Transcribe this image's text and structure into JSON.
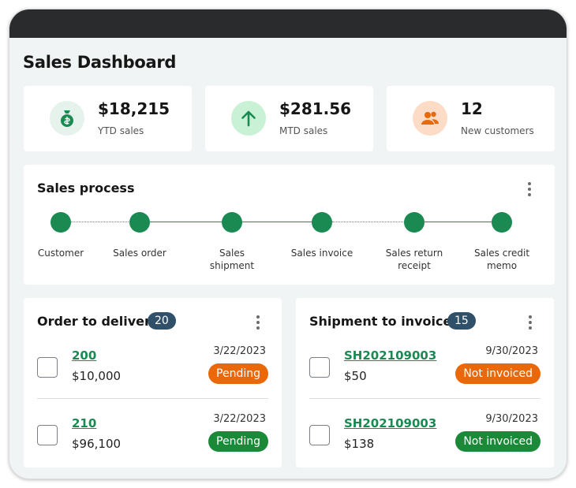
{
  "page_title": "Sales Dashboard",
  "colors": {
    "accent_green": "#1a8a52",
    "accent_orange": "#e8680a",
    "badge_navy": "#2f5068"
  },
  "kpis": [
    {
      "value": "$18,215",
      "label": "YTD sales",
      "icon": "money-bag-icon"
    },
    {
      "value": "$281.56",
      "label": "MTD sales",
      "icon": "arrow-up-icon"
    },
    {
      "value": "12",
      "label": "New customers",
      "icon": "users-icon"
    }
  ],
  "sales_process": {
    "title": "Sales process",
    "steps": [
      {
        "label": "Customer"
      },
      {
        "label": "Sales order"
      },
      {
        "label": "Sales shipment"
      },
      {
        "label": "Sales invoice"
      },
      {
        "label": "Sales return receipt"
      },
      {
        "label": "Sales credit memo"
      }
    ]
  },
  "order_to_deliver": {
    "title": "Order to deliver",
    "count": "20",
    "rows": [
      {
        "id": "200",
        "amount": "$10,000",
        "date": "3/22/2023",
        "status": "Pending",
        "status_color": "#e8680a"
      },
      {
        "id": "210",
        "amount": "$96,100",
        "date": "3/22/2023",
        "status": "Pending",
        "status_color": "#1a8a38"
      }
    ]
  },
  "shipment_to_invoice": {
    "title": "Shipment to invoice",
    "count": "15",
    "rows": [
      {
        "id": "SH202109003",
        "amount": "$50",
        "date": "9/30/2023",
        "status": "Not invoiced",
        "status_color": "#e8680a"
      },
      {
        "id": "SH202109003",
        "amount": "$138",
        "date": "9/30/2023",
        "status": "Not invoiced",
        "status_color": "#1a8a38"
      }
    ]
  }
}
